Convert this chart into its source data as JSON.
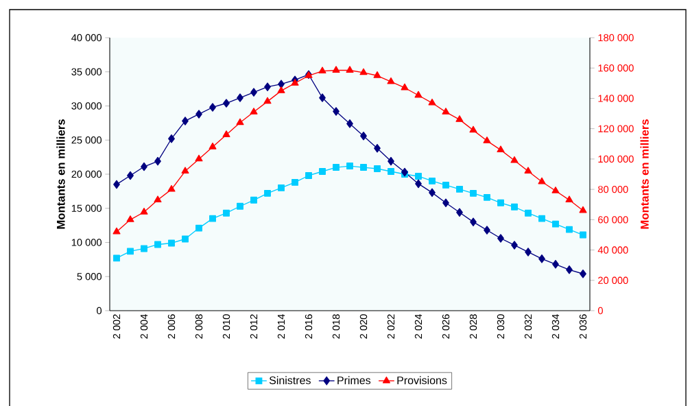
{
  "chart_data": {
    "type": "line",
    "ylabel": "Montants en milliers",
    "y2label": "Montants en milliers",
    "categories": [
      "2 002",
      null,
      "2 004",
      null,
      "2 006",
      null,
      "2 008",
      null,
      "2 010",
      null,
      "2 012",
      null,
      "2 014",
      null,
      "2 016",
      null,
      "2 018",
      null,
      "2 020",
      null,
      "2 022",
      null,
      "2 024",
      null,
      "2 026",
      null,
      "2 028",
      null,
      "2 030",
      null,
      "2 032",
      null,
      "2 034",
      null,
      "2 036"
    ],
    "series": [
      {
        "name": "Sinistres",
        "color": "#00ccff",
        "marker": "square",
        "values": [
          7700,
          8700,
          9100,
          9700,
          9900,
          10500,
          12100,
          13500,
          14300,
          15300,
          16200,
          17200,
          18000,
          18800,
          19800,
          20400,
          21000,
          21200,
          21000,
          20800,
          20400,
          20000,
          19700,
          19000,
          18400,
          17800,
          17200,
          16600,
          15800,
          15200,
          14300,
          13500,
          12700,
          11900,
          11100
        ]
      },
      {
        "name": "Primes",
        "color": "#000080",
        "marker": "diamond",
        "values": [
          18500,
          19800,
          21100,
          21900,
          25200,
          27800,
          28800,
          29800,
          30400,
          31200,
          32000,
          32800,
          33200,
          33800,
          34600,
          31200,
          29200,
          27400,
          25600,
          23800,
          21900,
          20300,
          18600,
          17300,
          15800,
          14400,
          13000,
          11800,
          10600,
          9600,
          8600,
          7600,
          6800,
          6000,
          5400
        ]
      },
      {
        "name": "Provisions",
        "color": "#ff0000",
        "marker": "triangle",
        "axis": "y2",
        "values": [
          52000,
          60000,
          65000,
          73000,
          80000,
          92000,
          100000,
          108000,
          116000,
          124000,
          131000,
          138000,
          145000,
          150000,
          155000,
          158000,
          158500,
          158500,
          157000,
          155000,
          151000,
          147000,
          142000,
          137000,
          131000,
          126000,
          119000,
          112000,
          106000,
          99000,
          92000,
          85000,
          79000,
          73000,
          66000
        ]
      }
    ],
    "ylim": [
      0,
      40000
    ],
    "yticks": [
      0,
      {
        "value": 5000,
        "label": "5 000"
      },
      {
        "value": 10000,
        "label": "10 000"
      },
      {
        "value": 15000,
        "label": "15 000"
      },
      {
        "value": 20000,
        "label": "20 000"
      },
      {
        "value": 25000,
        "label": "25 000"
      },
      {
        "value": 30000,
        "label": "30 000"
      },
      {
        "value": 35000,
        "label": "35 000"
      },
      {
        "value": 40000,
        "label": "40 000"
      }
    ],
    "y2lim": [
      0,
      180000
    ],
    "y2ticks": [
      0,
      {
        "value": 20000,
        "label": "20 000"
      },
      {
        "value": 40000,
        "label": "40 000"
      },
      {
        "value": 60000,
        "label": "60 000"
      },
      {
        "value": 80000,
        "label": "80 000"
      },
      {
        "value": 100000,
        "label": "100 000"
      },
      {
        "value": 120000,
        "label": "120 000"
      },
      {
        "value": 140000,
        "label": "140 000"
      },
      {
        "value": 160000,
        "label": "160 000"
      },
      {
        "value": 180000,
        "label": "180 000"
      }
    ],
    "grid": false,
    "legend": "bottom",
    "line_style": "solid"
  }
}
